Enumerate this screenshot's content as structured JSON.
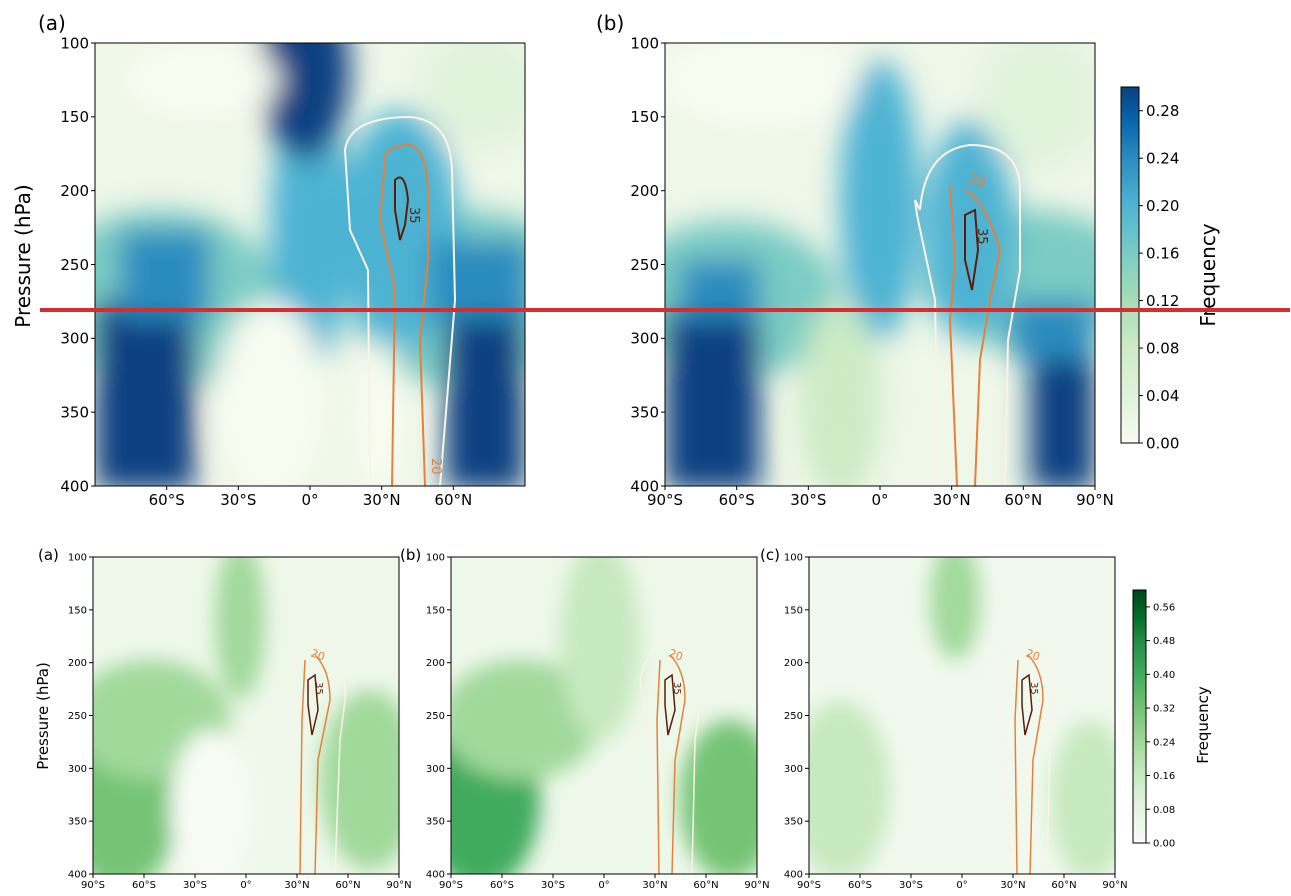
{
  "colors": {
    "blue_scale": [
      "#f7fcf0",
      "#e0f3db",
      "#ccebc5",
      "#a8ddb5",
      "#7bccc4",
      "#4eb3d3",
      "#2b8cbe",
      "#0868ac",
      "#084081"
    ],
    "green_scale": [
      "#f7fcf5",
      "#e5f5e0",
      "#c7e9c0",
      "#a1d99b",
      "#74c476",
      "#41ab5d",
      "#238b45",
      "#006d2c",
      "#00441b"
    ],
    "contour_white": "#fbf3e6",
    "contour_orange": "#e8803a",
    "contour_brown": "#5a1e0a",
    "divider": "#d32f2f"
  },
  "top_panel": {
    "ylabel": "Pressure (hPa)",
    "colorbar_label": "Frequency",
    "colorbar_ticks": [
      "0.00",
      "0.04",
      "0.08",
      "0.12",
      "0.16",
      "0.20",
      "0.24",
      "0.28"
    ],
    "colorbar_range": [
      0,
      0.3
    ],
    "y_ticks": [
      "100",
      "150",
      "200",
      "250",
      "300",
      "350",
      "400"
    ],
    "panels": [
      {
        "label": "(a)",
        "x_ticks": [
          "60°S",
          "30°S",
          "0°",
          "30°N",
          "60°N"
        ],
        "contour_labels": [
          "35",
          "20"
        ]
      },
      {
        "label": "(b)",
        "x_ticks": [
          "90°S",
          "60°S",
          "30°S",
          "0°",
          "30°N",
          "60°N",
          "90°N"
        ],
        "contour_labels": [
          "20",
          "35"
        ]
      }
    ]
  },
  "bottom_panel": {
    "ylabel": "Pressure (hPa)",
    "colorbar_label": "Frequency",
    "colorbar_ticks": [
      "0.00",
      "0.08",
      "0.16",
      "0.24",
      "0.32",
      "0.40",
      "0.48",
      "0.56"
    ],
    "colorbar_range": [
      0,
      0.6
    ],
    "y_ticks": [
      "100",
      "150",
      "200",
      "250",
      "300",
      "350",
      "400"
    ],
    "panels": [
      {
        "label": "(a)",
        "x_ticks": [
          "90°S",
          "60°S",
          "30°S",
          "0°",
          "30°N",
          "60°N",
          "90°N"
        ],
        "contour_labels": [
          "20",
          "35"
        ]
      },
      {
        "label": "(b)",
        "x_ticks": [
          "90°S",
          "60°S",
          "30°S",
          "0°",
          "30°N",
          "60°N",
          "90°N"
        ],
        "contour_labels": [
          "20",
          "35"
        ]
      },
      {
        "label": "(c)",
        "x_ticks": [
          "90°S",
          "60°S",
          "30°S",
          "0°",
          "30°N",
          "60°N",
          "90°N"
        ],
        "contour_labels": [
          "20",
          "35"
        ]
      }
    ]
  },
  "chart_data": [
    {
      "type": "heatmap",
      "panel": "top (a)",
      "xlabel": "",
      "ylabel": "Pressure (hPa)",
      "xlim": [
        -90,
        90
      ],
      "ylim": [
        400,
        100
      ],
      "x_ticks_shown": [
        "60°S",
        "30°S",
        "0°",
        "30°N",
        "60°N"
      ],
      "colorbar": {
        "label": "Frequency",
        "range": [
          0,
          0.3
        ]
      },
      "description_values": {
        "high_frequency_regions": [
          {
            "lat_range": [
              -90,
              -45
            ],
            "pressure_range": [
              270,
              400
            ],
            "frequency": 0.28
          },
          {
            "lat_range": [
              -15,
              10
            ],
            "pressure_range": [
              100,
              180
            ],
            "frequency": 0.28
          },
          {
            "lat_range": [
              45,
              90
            ],
            "pressure_range": [
              280,
              400
            ],
            "frequency": 0.28
          }
        ],
        "contours": [
          {
            "level": 35
          },
          {
            "level": 20
          }
        ]
      }
    },
    {
      "type": "heatmap",
      "panel": "top (b)",
      "xlabel": "",
      "ylabel": "",
      "xlim": [
        -90,
        90
      ],
      "ylim": [
        400,
        100
      ],
      "colorbar": {
        "label": "Frequency",
        "range": [
          0,
          0.3
        ]
      },
      "description_values": {
        "high_frequency_regions": [
          {
            "lat_range": [
              -90,
              -45
            ],
            "pressure_range": [
              280,
              400
            ],
            "frequency": 0.28
          },
          {
            "lat_range": [
              60,
              90
            ],
            "pressure_range": [
              300,
              400
            ],
            "frequency": 0.28
          }
        ],
        "contours": [
          {
            "level": 20
          },
          {
            "level": 35
          }
        ]
      }
    },
    {
      "type": "heatmap",
      "panel": "bottom (a)",
      "ylabel": "Pressure (hPa)",
      "xlim": [
        -90,
        90
      ],
      "ylim": [
        400,
        100
      ],
      "colorbar": {
        "label": "Frequency",
        "range": [
          0,
          0.6
        ]
      },
      "description_values": {
        "contours": [
          {
            "level": 20
          },
          {
            "level": 35
          }
        ]
      }
    },
    {
      "type": "heatmap",
      "panel": "bottom (b)",
      "xlim": [
        -90,
        90
      ],
      "ylim": [
        400,
        100
      ],
      "colorbar": {
        "label": "Frequency",
        "range": [
          0,
          0.6
        ]
      },
      "description_values": {
        "contours": [
          {
            "level": 20
          },
          {
            "level": 35
          }
        ]
      }
    },
    {
      "type": "heatmap",
      "panel": "bottom (c)",
      "xlim": [
        -90,
        90
      ],
      "ylim": [
        400,
        100
      ],
      "colorbar": {
        "label": "Frequency",
        "range": [
          0,
          0.6
        ]
      },
      "description_values": {
        "contours": [
          {
            "level": 20
          },
          {
            "level": 35
          }
        ]
      }
    }
  ]
}
